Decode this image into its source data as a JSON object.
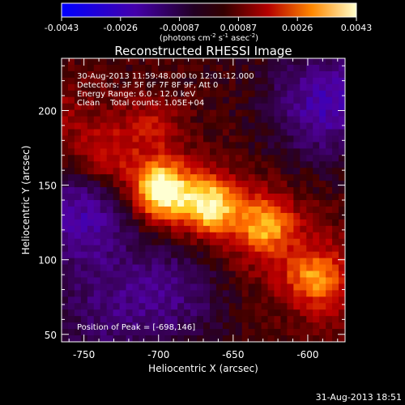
{
  "colorbar": {
    "ticks": [
      "-0.0043",
      "-0.0026",
      "-0.00087",
      "0.00087",
      "0.0026",
      "0.0043"
    ],
    "unit_main": "(photons cm",
    "unit_exp1": "-2",
    "unit_s": " s",
    "unit_exp2": "-1",
    "unit_asec": " asec",
    "unit_exp3": "-2",
    "unit_close": ")"
  },
  "chart_data": {
    "type": "heatmap",
    "title": "Reconstructed RHESSI Image",
    "xlabel": "Heliocentric X (arcsec)",
    "ylabel": "Heliocentric Y (arcsec)",
    "xlim": [
      -765,
      -575
    ],
    "ylim": [
      45,
      235
    ],
    "xticks": [
      -750,
      -700,
      -650,
      -600
    ],
    "yticks": [
      50,
      100,
      150,
      200
    ],
    "clim": [
      -0.0043,
      0.0043
    ],
    "annotations": [
      "30-Aug-2013 11:59:48.000 to 12:01:12.000",
      "Detectors: 3F 5F 6F 7F 8F 9F, Att 0",
      "Energy Range: 6.0 - 12.0 keV",
      "Clean    Total counts: 1.05E+04"
    ],
    "peak_label": "Position of Peak = [-698,146]",
    "peak": [
      -698,
      146
    ],
    "sources": [
      {
        "x": -698,
        "y": 146,
        "amp": 0.0043
      },
      {
        "x": -665,
        "y": 136,
        "amp": 0.0034
      },
      {
        "x": -628,
        "y": 124,
        "amp": 0.0026
      },
      {
        "x": -596,
        "y": 88,
        "amp": 0.0021
      },
      {
        "x": -735,
        "y": 168,
        "amp": 0.0012
      },
      {
        "x": -705,
        "y": 190,
        "amp": 0.0011
      }
    ],
    "negative_regions": [
      {
        "x": -752,
        "y": 132,
        "amp": -0.0025
      },
      {
        "x": -588,
        "y": 205,
        "amp": -0.0024
      },
      {
        "x": -688,
        "y": 82,
        "amp": -0.0016
      },
      {
        "x": -735,
        "y": 62,
        "amp": -0.0013
      }
    ]
  },
  "timestamp": "31-Aug-2013 18:51"
}
